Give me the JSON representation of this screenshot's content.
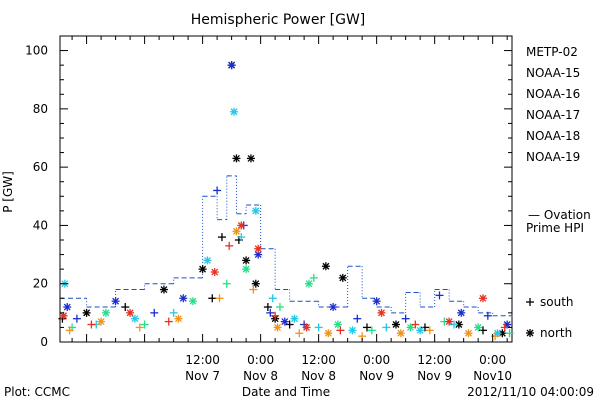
{
  "chart_data": {
    "type": "scatter",
    "title": "Hemispheric Power [GW]",
    "ylabel": "P [GW]",
    "xlabel": "Date and Time",
    "ylim": [
      0,
      105
    ],
    "yticks": [
      0,
      20,
      40,
      60,
      80,
      100
    ],
    "xlim": [
      "2012-11-06 06:30",
      "2012-11-10 04:00"
    ],
    "xticks": [
      {
        "x": "2012-11-07 12:00",
        "label1": "12:00",
        "label2": "Nov 7"
      },
      {
        "x": "2012-11-08 00:00",
        "label1": "0:00",
        "label2": "Nov 8"
      },
      {
        "x": "2012-11-08 12:00",
        "label1": "12:00",
        "label2": "Nov 8"
      },
      {
        "x": "2012-11-09 00:00",
        "label1": "0:00",
        "label2": "Nov 9"
      },
      {
        "x": "2012-11-09 12:00",
        "label1": "12:00",
        "label2": "Nov 9"
      },
      {
        "x": "2012-11-10 00:00",
        "label1": "0:00",
        "label2": "Nov10"
      }
    ],
    "footer_left": "Plot: CCMC",
    "footer_right": "2012/11/10 04:00:09",
    "legend": [
      {
        "name": "METP-02",
        "color": "#000000"
      },
      {
        "name": "NOAA-15",
        "color": "#1a2ecf"
      },
      {
        "name": "NOAA-16",
        "color": "#22c8e8"
      },
      {
        "name": "NOAA-17",
        "color": "#22e08a"
      },
      {
        "name": "NOAA-18",
        "color": "#f09418"
      },
      {
        "name": "NOAA-19",
        "color": "#e83020"
      }
    ],
    "ovation": {
      "label1": "— Ovation",
      "label2": "Prime HPI",
      "color": "#1a4fc8"
    },
    "markers": [
      {
        "symbol": "+",
        "label": "south"
      },
      {
        "symbol": "*",
        "label": "north"
      }
    ],
    "series": [
      {
        "name": "METP-02",
        "color": "#000000",
        "points": [
          {
            "x": "2012-11-06 07:00",
            "y": 8,
            "m": "+"
          },
          {
            "x": "2012-11-06 12:00",
            "y": 10,
            "m": "*"
          },
          {
            "x": "2012-11-06 20:00",
            "y": 12,
            "m": "+"
          },
          {
            "x": "2012-11-07 04:00",
            "y": 18,
            "m": "*"
          },
          {
            "x": "2012-11-07 12:00",
            "y": 25,
            "m": "*"
          },
          {
            "x": "2012-11-07 14:00",
            "y": 15,
            "m": "+"
          },
          {
            "x": "2012-11-07 16:00",
            "y": 36,
            "m": "+"
          },
          {
            "x": "2012-11-07 18:00",
            "y": 95,
            "m": "*"
          },
          {
            "x": "2012-11-07 19:00",
            "y": 63,
            "m": "*"
          },
          {
            "x": "2012-11-07 19:30",
            "y": 35,
            "m": "+"
          },
          {
            "x": "2012-11-07 21:00",
            "y": 28,
            "m": "*"
          },
          {
            "x": "2012-11-07 22:00",
            "y": 63,
            "m": "*"
          },
          {
            "x": "2012-11-07 23:00",
            "y": 20,
            "m": "*"
          },
          {
            "x": "2012-11-08 01:30",
            "y": 12,
            "m": "+"
          },
          {
            "x": "2012-11-08 03:00",
            "y": 8,
            "m": "*"
          },
          {
            "x": "2012-11-08 06:00",
            "y": 6,
            "m": "+"
          },
          {
            "x": "2012-11-08 13:30",
            "y": 26,
            "m": "*"
          },
          {
            "x": "2012-11-08 17:00",
            "y": 22,
            "m": "*"
          },
          {
            "x": "2012-11-08 22:00",
            "y": 5,
            "m": "+"
          },
          {
            "x": "2012-11-09 04:00",
            "y": 6,
            "m": "*"
          },
          {
            "x": "2012-11-09 10:00",
            "y": 5,
            "m": "+"
          },
          {
            "x": "2012-11-09 17:00",
            "y": 6,
            "m": "*"
          },
          {
            "x": "2012-11-09 22:00",
            "y": 4,
            "m": "+"
          },
          {
            "x": "2012-11-10 02:00",
            "y": 3,
            "m": "*"
          }
        ]
      },
      {
        "name": "NOAA-15",
        "color": "#1a2ecf",
        "points": [
          {
            "x": "2012-11-06 08:00",
            "y": 12,
            "m": "*"
          },
          {
            "x": "2012-11-06 10:00",
            "y": 8,
            "m": "+"
          },
          {
            "x": "2012-11-06 18:00",
            "y": 14,
            "m": "*"
          },
          {
            "x": "2012-11-07 02:00",
            "y": 10,
            "m": "+"
          },
          {
            "x": "2012-11-07 08:00",
            "y": 15,
            "m": "*"
          },
          {
            "x": "2012-11-07 15:00",
            "y": 52,
            "m": "+"
          },
          {
            "x": "2012-11-07 18:00",
            "y": 95,
            "m": "*"
          },
          {
            "x": "2012-11-07 20:30",
            "y": 40,
            "m": "+"
          },
          {
            "x": "2012-11-07 23:30",
            "y": 30,
            "m": "*"
          },
          {
            "x": "2012-11-08 02:00",
            "y": 10,
            "m": "+"
          },
          {
            "x": "2012-11-08 05:00",
            "y": 7,
            "m": "*"
          },
          {
            "x": "2012-11-08 09:00",
            "y": 6,
            "m": "+"
          },
          {
            "x": "2012-11-08 15:00",
            "y": 12,
            "m": "*"
          },
          {
            "x": "2012-11-08 20:00",
            "y": 8,
            "m": "+"
          },
          {
            "x": "2012-11-09 00:00",
            "y": 14,
            "m": "*"
          },
          {
            "x": "2012-11-09 06:00",
            "y": 8,
            "m": "+"
          },
          {
            "x": "2012-11-09 13:00",
            "y": 16,
            "m": "+"
          },
          {
            "x": "2012-11-09 17:30",
            "y": 10,
            "m": "*"
          },
          {
            "x": "2012-11-09 23:00",
            "y": 9,
            "m": "+"
          },
          {
            "x": "2012-11-10 03:00",
            "y": 6,
            "m": "*"
          }
        ]
      },
      {
        "name": "NOAA-16",
        "color": "#22c8e8",
        "points": [
          {
            "x": "2012-11-06 07:30",
            "y": 20,
            "m": "*"
          },
          {
            "x": "2012-11-06 14:00",
            "y": 6,
            "m": "+"
          },
          {
            "x": "2012-11-06 22:00",
            "y": 8,
            "m": "*"
          },
          {
            "x": "2012-11-07 06:00",
            "y": 10,
            "m": "+"
          },
          {
            "x": "2012-11-07 13:00",
            "y": 28,
            "m": "*"
          },
          {
            "x": "2012-11-07 18:30",
            "y": 79,
            "m": "*"
          },
          {
            "x": "2012-11-07 20:00",
            "y": 36,
            "m": "+"
          },
          {
            "x": "2012-11-07 23:00",
            "y": 45,
            "m": "*"
          },
          {
            "x": "2012-11-08 02:30",
            "y": 15,
            "m": "+"
          },
          {
            "x": "2012-11-08 07:00",
            "y": 8,
            "m": "*"
          },
          {
            "x": "2012-11-08 12:00",
            "y": 5,
            "m": "+"
          },
          {
            "x": "2012-11-08 19:00",
            "y": 4,
            "m": "*"
          },
          {
            "x": "2012-11-09 02:00",
            "y": 5,
            "m": "+"
          },
          {
            "x": "2012-11-09 09:00",
            "y": 4,
            "m": "*"
          },
          {
            "x": "2012-11-09 16:00",
            "y": 6,
            "m": "+"
          },
          {
            "x": "2012-11-10 01:00",
            "y": 3,
            "m": "*"
          }
        ]
      },
      {
        "name": "NOAA-17",
        "color": "#22e08a",
        "points": [
          {
            "x": "2012-11-06 09:00",
            "y": 5,
            "m": "+"
          },
          {
            "x": "2012-11-06 16:00",
            "y": 10,
            "m": "*"
          },
          {
            "x": "2012-11-07 00:00",
            "y": 6,
            "m": "+"
          },
          {
            "x": "2012-11-07 10:00",
            "y": 14,
            "m": "*"
          },
          {
            "x": "2012-11-07 17:00",
            "y": 20,
            "m": "+"
          },
          {
            "x": "2012-11-07 21:00",
            "y": 25,
            "m": "*"
          },
          {
            "x": "2012-11-08 04:00",
            "y": 12,
            "m": "+"
          },
          {
            "x": "2012-11-08 10:00",
            "y": 20,
            "m": "*"
          },
          {
            "x": "2012-11-08 11:00",
            "y": 22,
            "m": "+"
          },
          {
            "x": "2012-11-08 16:00",
            "y": 6,
            "m": "*"
          },
          {
            "x": "2012-11-08 23:00",
            "y": 4,
            "m": "+"
          },
          {
            "x": "2012-11-09 07:00",
            "y": 5,
            "m": "*"
          },
          {
            "x": "2012-11-09 14:00",
            "y": 7,
            "m": "+"
          },
          {
            "x": "2012-11-09 21:00",
            "y": 5,
            "m": "*"
          },
          {
            "x": "2012-11-10 03:30",
            "y": 3,
            "m": "+"
          }
        ]
      },
      {
        "name": "NOAA-18",
        "color": "#f09418",
        "points": [
          {
            "x": "2012-11-06 08:30",
            "y": 4,
            "m": "+"
          },
          {
            "x": "2012-11-06 15:00",
            "y": 7,
            "m": "*"
          },
          {
            "x": "2012-11-06 23:00",
            "y": 5,
            "m": "+"
          },
          {
            "x": "2012-11-07 07:00",
            "y": 8,
            "m": "*"
          },
          {
            "x": "2012-11-07 15:30",
            "y": 15,
            "m": "+"
          },
          {
            "x": "2012-11-07 19:00",
            "y": 38,
            "m": "*"
          },
          {
            "x": "2012-11-07 22:30",
            "y": 18,
            "m": "+"
          },
          {
            "x": "2012-11-08 03:30",
            "y": 5,
            "m": "*"
          },
          {
            "x": "2012-11-08 08:00",
            "y": 3,
            "m": "+"
          },
          {
            "x": "2012-11-08 14:00",
            "y": 3,
            "m": "*"
          },
          {
            "x": "2012-11-08 21:00",
            "y": 2,
            "m": "+"
          },
          {
            "x": "2012-11-09 05:00",
            "y": 3,
            "m": "*"
          },
          {
            "x": "2012-11-09 11:00",
            "y": 4,
            "m": "+"
          },
          {
            "x": "2012-11-09 19:00",
            "y": 3,
            "m": "*"
          },
          {
            "x": "2012-11-10 00:30",
            "y": 2,
            "m": "+"
          }
        ]
      },
      {
        "name": "NOAA-19",
        "color": "#e83020",
        "points": [
          {
            "x": "2012-11-06 07:15",
            "y": 9,
            "m": "*"
          },
          {
            "x": "2012-11-06 13:00",
            "y": 6,
            "m": "+"
          },
          {
            "x": "2012-11-06 21:00",
            "y": 10,
            "m": "*"
          },
          {
            "x": "2012-11-07 05:00",
            "y": 7,
            "m": "+"
          },
          {
            "x": "2012-11-07 14:30",
            "y": 24,
            "m": "*"
          },
          {
            "x": "2012-11-07 17:30",
            "y": 33,
            "m": "+"
          },
          {
            "x": "2012-11-07 20:00",
            "y": 40,
            "m": "*"
          },
          {
            "x": "2012-11-07 23:30",
            "y": 32,
            "m": "*"
          },
          {
            "x": "2012-11-08 03:00",
            "y": 9,
            "m": "+"
          },
          {
            "x": "2012-11-08 09:30",
            "y": 5,
            "m": "*"
          },
          {
            "x": "2012-11-08 16:30",
            "y": 4,
            "m": "+"
          },
          {
            "x": "2012-11-09 01:00",
            "y": 10,
            "m": "*"
          },
          {
            "x": "2012-11-09 08:00",
            "y": 6,
            "m": "+"
          },
          {
            "x": "2012-11-09 15:00",
            "y": 7,
            "m": "*"
          },
          {
            "x": "2012-11-09 22:00",
            "y": 15,
            "m": "*"
          },
          {
            "x": "2012-11-10 02:30",
            "y": 5,
            "m": "+"
          }
        ]
      }
    ],
    "ovation_series": {
      "name": "Ovation Prime HPI",
      "color": "#1a4fc8",
      "points": [
        [
          "2012-11-06 06:30",
          15
        ],
        [
          "2012-11-06 12:00",
          12
        ],
        [
          "2012-11-06 18:00",
          18
        ],
        [
          "2012-11-07 00:00",
          20
        ],
        [
          "2012-11-07 06:00",
          22
        ],
        [
          "2012-11-07 12:00",
          50
        ],
        [
          "2012-11-07 15:00",
          42
        ],
        [
          "2012-11-07 17:00",
          57
        ],
        [
          "2012-11-07 19:00",
          44
        ],
        [
          "2012-11-07 21:00",
          47
        ],
        [
          "2012-11-08 00:00",
          32
        ],
        [
          "2012-11-08 03:00",
          18
        ],
        [
          "2012-11-08 06:00",
          14
        ],
        [
          "2012-11-08 12:00",
          12
        ],
        [
          "2012-11-08 18:00",
          26
        ],
        [
          "2012-11-08 21:00",
          15
        ],
        [
          "2012-11-09 00:00",
          12
        ],
        [
          "2012-11-09 03:00",
          10
        ],
        [
          "2012-11-09 06:00",
          17
        ],
        [
          "2012-11-09 09:00",
          12
        ],
        [
          "2012-11-09 12:00",
          18
        ],
        [
          "2012-11-09 15:00",
          14
        ],
        [
          "2012-11-09 18:00",
          12
        ],
        [
          "2012-11-09 21:00",
          10
        ],
        [
          "2012-11-10 00:00",
          9
        ],
        [
          "2012-11-10 04:00",
          8
        ]
      ]
    }
  }
}
